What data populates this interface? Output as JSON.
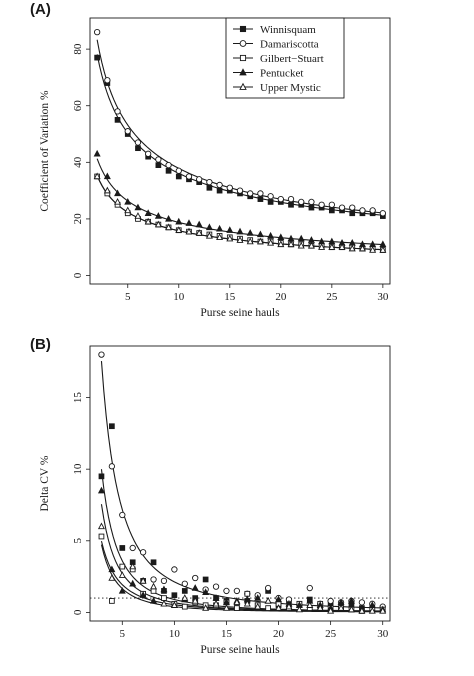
{
  "figure": {
    "legend": [
      "Winnisquam",
      "Damariscotta",
      "Gilbert−Stuart",
      "Pentucket",
      "Upper Mystic"
    ]
  },
  "chart_data": [
    {
      "panel_label": "(A)",
      "type": "scatter",
      "title": "",
      "xlabel": "Purse seine hauls",
      "ylabel": "Coefficient of Variation %",
      "xlim": [
        1.3,
        30.7
      ],
      "ylim": [
        -3,
        91
      ],
      "xticks": [
        5,
        10,
        15,
        20,
        25,
        30
      ],
      "yticks": [
        0,
        20,
        40,
        60,
        80
      ],
      "grid": false,
      "legend_position": "top-right",
      "x": [
        2,
        3,
        4,
        5,
        6,
        7,
        8,
        9,
        10,
        11,
        12,
        13,
        14,
        15,
        16,
        17,
        18,
        19,
        20,
        21,
        22,
        23,
        24,
        25,
        26,
        27,
        28,
        29,
        30
      ],
      "series": [
        {
          "name": "Winnisquam",
          "marker": "filled-square",
          "values": [
            77,
            68,
            55,
            50,
            45,
            42,
            39,
            37,
            35,
            34,
            33,
            31,
            30,
            30,
            29,
            28,
            27,
            26,
            26,
            25,
            25,
            24,
            24,
            23,
            23,
            22,
            22,
            22,
            21
          ]
        },
        {
          "name": "Damariscotta",
          "marker": "open-circle",
          "values": [
            86,
            69,
            58,
            51,
            47,
            43,
            41,
            39,
            37,
            35,
            34,
            33,
            32,
            31,
            30,
            29,
            29,
            28,
            27,
            27,
            26,
            26,
            25,
            25,
            24,
            24,
            23,
            23,
            22
          ]
        },
        {
          "name": "Gilbert−Stuart",
          "marker": "open-square",
          "values": [
            35,
            29,
            25,
            22,
            20,
            19,
            18,
            17,
            16,
            15.5,
            15,
            14.5,
            14,
            13.5,
            13,
            12.5,
            12,
            12,
            11.5,
            11,
            11,
            10.5,
            10.5,
            10,
            10,
            10,
            9.5,
            9.5,
            9
          ]
        },
        {
          "name": "Pentucket",
          "marker": "filled-triangle",
          "values": [
            43,
            35,
            29,
            26,
            24,
            22,
            21,
            20,
            19,
            18.5,
            18,
            17,
            16.5,
            16,
            15.5,
            15,
            14.5,
            14,
            13.5,
            13,
            13,
            12.5,
            12,
            12,
            11.5,
            11.5,
            11,
            11,
            11
          ]
        },
        {
          "name": "Upper Mystic",
          "marker": "open-triangle",
          "values": [
            35,
            30,
            26,
            23,
            21,
            19,
            18,
            17,
            16,
            15.5,
            15,
            14,
            13.5,
            13,
            12.5,
            12,
            12,
            11.5,
            11,
            11,
            10.5,
            10.5,
            10,
            10,
            10,
            9.5,
            9.5,
            9,
            9
          ]
        }
      ],
      "fits": [
        {
          "name": "Winnisquam",
          "a": 109,
          "b": 0.48
        },
        {
          "name": "Damariscotta",
          "a": 117,
          "b": 0.49
        },
        {
          "name": "Gilbert−Stuart",
          "a": 50,
          "b": 0.5
        },
        {
          "name": "Pentucket",
          "a": 58,
          "b": 0.49
        },
        {
          "name": "Upper Mystic",
          "a": 50,
          "b": 0.5
        }
      ]
    },
    {
      "panel_label": "(B)",
      "type": "scatter",
      "title": "",
      "xlabel": "Purse seine hauls",
      "ylabel": "Delta CV %",
      "xlim": [
        1.9,
        30.7
      ],
      "ylim": [
        -0.6,
        18.6
      ],
      "xticks": [
        5,
        10,
        15,
        20,
        25,
        30
      ],
      "yticks": [
        0,
        5,
        10,
        15
      ],
      "grid": false,
      "reference_line": 1,
      "x": [
        3,
        4,
        5,
        6,
        7,
        8,
        9,
        10,
        11,
        12,
        13,
        14,
        15,
        16,
        17,
        18,
        19,
        20,
        21,
        22,
        23,
        24,
        25,
        26,
        27,
        28,
        29,
        30
      ],
      "series": [
        {
          "name": "Winnisquam",
          "marker": "filled-square",
          "values": [
            9.5,
            13,
            4.5,
            3.5,
            2.2,
            3.5,
            1.5,
            1.2,
            1.5,
            1.0,
            2.3,
            1.0,
            0.8,
            0.3,
            0.8,
            0.5,
            1.5,
            0.5,
            0.8,
            0.6,
            0.9,
            0.4,
            0.6,
            0.3,
            0.5,
            0.3,
            0.2,
            0.3
          ]
        },
        {
          "name": "Damariscotta",
          "marker": "open-circle",
          "values": [
            18,
            10.2,
            6.8,
            4.5,
            4.2,
            2.3,
            2.2,
            3.0,
            2.0,
            2.4,
            1.6,
            1.8,
            1.5,
            1.5,
            1.3,
            1.2,
            1.7,
            1.0,
            0.9,
            0.5,
            1.7,
            0.6,
            0.8,
            0.7,
            0.8,
            0.7,
            0.6,
            0.4
          ]
        },
        {
          "name": "Gilbert−Stuart",
          "marker": "open-square",
          "values": [
            5.3,
            0.8,
            3.2,
            3.0,
            1.3,
            1.5,
            1.0,
            0.6,
            0.4,
            0.7,
            0.5,
            0.5,
            0.7,
            0.3,
            1.3,
            0.5,
            0.3,
            0.6,
            0.3,
            0.6,
            0.3,
            0.6,
            0.3,
            0.3,
            0.2,
            0.1,
            0.3,
            0.2
          ]
        },
        {
          "name": "Pentucket",
          "marker": "filled-triangle",
          "values": [
            8.5,
            3.0,
            1.5,
            2.0,
            1.2,
            0.8,
            1.6,
            0.5,
            0.9,
            1.7,
            1.4,
            1.0,
            0.7,
            0.8,
            0.9,
            1.0,
            0.8,
            0.9,
            0.6,
            0.5,
            0.8,
            0.5,
            0.3,
            0.7,
            0.8,
            0.2,
            0.5,
            0.2
          ]
        },
        {
          "name": "Upper Mystic",
          "marker": "open-triangle",
          "values": [
            6.0,
            2.4,
            2.6,
            3.2,
            2.2,
            1.8,
            0.6,
            0.5,
            1.0,
            0.8,
            0.3,
            0.6,
            0.3,
            0.7,
            0.6,
            0.4,
            0.8,
            0.3,
            0.4,
            0.2,
            0.5,
            0.3,
            0.1,
            0.3,
            0.2,
            0.1,
            0.1,
            0.1
          ]
        }
      ],
      "fits": [
        {
          "name": "Winnisquam",
          "a": 90,
          "b": 2.0
        },
        {
          "name": "Damariscotta",
          "a": 120,
          "b": 1.75
        },
        {
          "name": "Gilbert−Stuart",
          "a": 45,
          "b": 2.05
        },
        {
          "name": "Pentucket",
          "a": 68,
          "b": 2.0
        },
        {
          "name": "Upper Mystic",
          "a": 38,
          "b": 1.85
        }
      ]
    }
  ]
}
